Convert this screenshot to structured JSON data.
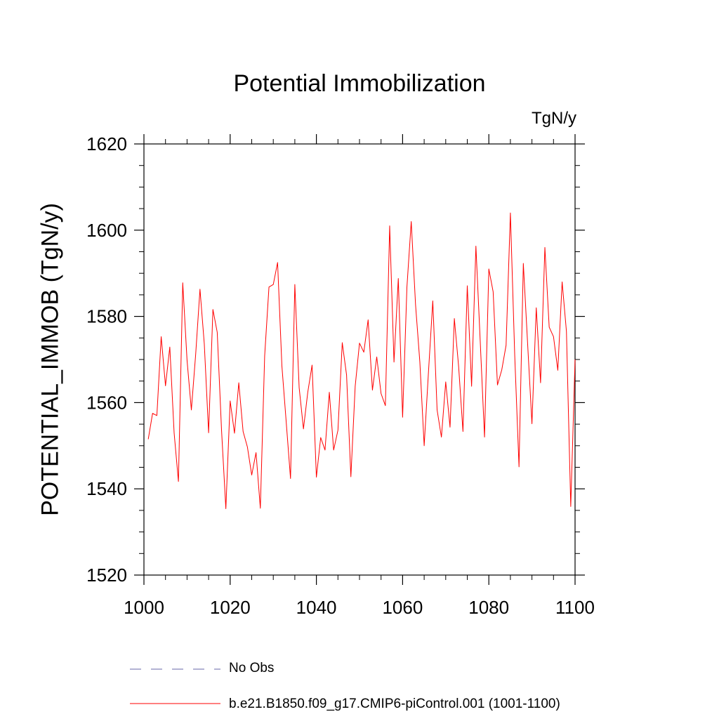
{
  "chart_data": {
    "type": "line",
    "title": "Potential Immobilization",
    "units": "TgN/y",
    "xlabel": "",
    "ylabel": "POTENTIAL_IMMOB  (TgN/y)",
    "xlim": [
      1000,
      1100
    ],
    "ylim": [
      1520,
      1620
    ],
    "x_ticks": [
      1000,
      1020,
      1040,
      1060,
      1080,
      1100
    ],
    "y_ticks": [
      1520,
      1540,
      1560,
      1580,
      1600,
      1620
    ],
    "series": [
      {
        "name": "b.e21.B1850.f09_g17.CMIP6-piControl.001 (1001-1100)",
        "color": "#ff0000",
        "style": "solid",
        "x": [
          1001,
          1002,
          1003,
          1004,
          1005,
          1006,
          1007,
          1008,
          1009,
          1010,
          1011,
          1012,
          1013,
          1014,
          1015,
          1016,
          1017,
          1018,
          1019,
          1020,
          1021,
          1022,
          1023,
          1024,
          1025,
          1026,
          1027,
          1028,
          1029,
          1030,
          1031,
          1032,
          1033,
          1034,
          1035,
          1036,
          1037,
          1038,
          1039,
          1040,
          1041,
          1042,
          1043,
          1044,
          1045,
          1046,
          1047,
          1048,
          1049,
          1050,
          1051,
          1052,
          1053,
          1054,
          1055,
          1056,
          1057,
          1058,
          1059,
          1060,
          1061,
          1062,
          1063,
          1064,
          1065,
          1066,
          1067,
          1068,
          1069,
          1070,
          1071,
          1072,
          1073,
          1074,
          1075,
          1076,
          1077,
          1078,
          1079,
          1080,
          1081,
          1082,
          1083,
          1084,
          1085,
          1086,
          1087,
          1088,
          1089,
          1090,
          1091,
          1092,
          1093,
          1094,
          1095,
          1096,
          1097,
          1098,
          1099,
          1100
        ],
        "values": [
          1551.5,
          1557.5,
          1557,
          1575.3,
          1563.9,
          1572.9,
          1553,
          1541.7,
          1587.8,
          1569.8,
          1558.3,
          1571.2,
          1586.3,
          1573.6,
          1553,
          1581.6,
          1576.3,
          1553.6,
          1535.4,
          1560.4,
          1552.9,
          1564.6,
          1553.3,
          1549.7,
          1543.2,
          1548.4,
          1535.5,
          1570.8,
          1586.8,
          1587.4,
          1592.5,
          1568.5,
          1555.5,
          1542.4,
          1587.4,
          1563.5,
          1553.9,
          1562.4,
          1568.7,
          1542.7,
          1551.9,
          1549,
          1562.4,
          1549,
          1553.6,
          1573.9,
          1566.4,
          1542.8,
          1563.8,
          1573.8,
          1571.7,
          1579.2,
          1562.9,
          1570.6,
          1562.1,
          1559.3,
          1601,
          1569.4,
          1588.8,
          1556.6,
          1586.8,
          1602,
          1582.7,
          1569.4,
          1550,
          1567.1,
          1583.6,
          1558.3,
          1552,
          1564.8,
          1554.3,
          1579.5,
          1568.3,
          1553.3,
          1587.1,
          1563.8,
          1596.3,
          1574.3,
          1552,
          1591,
          1585.7,
          1564.1,
          1567.6,
          1573.3,
          1604,
          1571.1,
          1545.1,
          1592.3,
          1573.6,
          1555.1,
          1582,
          1564.6,
          1596,
          1577.5,
          1575.3,
          1567.5,
          1588,
          1576.5,
          1535.9,
          1570
        ]
      },
      {
        "name": "No Obs",
        "color": "#6666aa",
        "style": "dashed",
        "x": [],
        "values": []
      }
    ],
    "legend_placement": "bottom"
  }
}
